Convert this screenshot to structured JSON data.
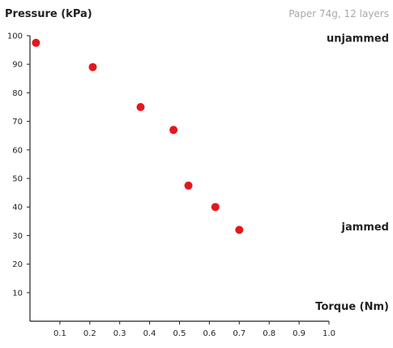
{
  "chart_data": {
    "type": "scatter",
    "title": "",
    "subtitle": "Paper 74g, 12 layers",
    "xlabel": "Torque (Nm)",
    "ylabel": "Pressure (kPa)",
    "xlim": [
      0,
      1.0
    ],
    "ylim": [
      0,
      100
    ],
    "x_ticks": [
      "0.1",
      "0.2",
      "0.3",
      "0.4",
      "0.5",
      "0.6",
      "0.7",
      "0.8",
      "0.9",
      "1.0"
    ],
    "y_ticks": [
      "10",
      "20",
      "30",
      "40",
      "50",
      "60",
      "70",
      "80",
      "90",
      "100"
    ],
    "grid": false,
    "series": [
      {
        "color": "#e3181e",
        "points": [
          {
            "x": 0.02,
            "y": 97.5
          },
          {
            "x": 0.21,
            "y": 89
          },
          {
            "x": 0.37,
            "y": 75
          },
          {
            "x": 0.48,
            "y": 67
          },
          {
            "x": 0.53,
            "y": 47.5
          },
          {
            "x": 0.62,
            "y": 40
          },
          {
            "x": 0.7,
            "y": 32
          }
        ]
      }
    ],
    "annotations": [
      {
        "text": "unjammed",
        "x": 1.0,
        "y": 99
      },
      {
        "text": "jammed",
        "x": 1.0,
        "y": 33
      }
    ]
  }
}
